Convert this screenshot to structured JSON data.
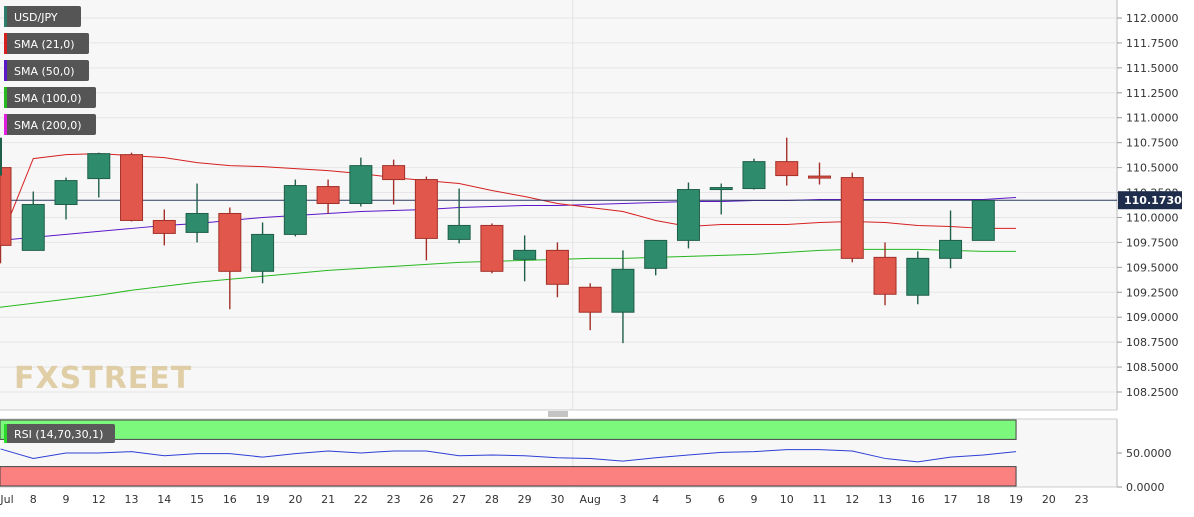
{
  "chart_data": {
    "type": "candlestick",
    "symbol": "USD/JPY",
    "watermark": "FXSTREET",
    "current_price": "110.1730",
    "legend": [
      {
        "label": "USD/JPY",
        "color": "#2e7d6a"
      },
      {
        "label": "SMA (21,0)",
        "color": "#d62020"
      },
      {
        "label": "SMA (50,0)",
        "color": "#5b16c8"
      },
      {
        "label": "SMA (100,0)",
        "color": "#27b71e"
      },
      {
        "label": "SMA (200,0)",
        "color": "#e01ee0"
      }
    ],
    "y_axis": {
      "ylim": [
        108.1,
        112.1
      ],
      "ticks": [
        "112.0000",
        "111.7500",
        "111.5000",
        "111.2500",
        "111.0000",
        "110.7500",
        "110.5000",
        "110.2500",
        "110.0000",
        "109.7500",
        "109.5000",
        "109.2500",
        "109.0000",
        "108.7500",
        "108.5000",
        "108.2500"
      ]
    },
    "x_labels": [
      "Jul",
      "8",
      "9",
      "12",
      "13",
      "14",
      "15",
      "16",
      "19",
      "20",
      "21",
      "22",
      "23",
      "26",
      "27",
      "28",
      "29",
      "30",
      "Aug",
      "3",
      "4",
      "5",
      "6",
      "9",
      "10",
      "11",
      "12",
      "13",
      "16",
      "17",
      "18",
      "19",
      "20",
      "23"
    ],
    "candles": [
      {
        "o": 110.5,
        "h": 110.7,
        "l": 109.54,
        "c": 109.72
      },
      {
        "o": 109.67,
        "h": 110.26,
        "l": 109.67,
        "c": 110.13
      },
      {
        "o": 110.13,
        "h": 110.4,
        "l": 109.98,
        "c": 110.37
      },
      {
        "o": 110.39,
        "h": 110.65,
        "l": 110.2,
        "c": 110.64
      },
      {
        "o": 110.63,
        "h": 110.65,
        "l": 109.96,
        "c": 109.97
      },
      {
        "o": 109.97,
        "h": 110.08,
        "l": 109.72,
        "c": 109.84
      },
      {
        "o": 109.85,
        "h": 110.34,
        "l": 109.75,
        "c": 110.04
      },
      {
        "o": 110.04,
        "h": 110.1,
        "l": 109.08,
        "c": 109.46
      },
      {
        "o": 109.46,
        "h": 109.95,
        "l": 109.34,
        "c": 109.83
      },
      {
        "o": 109.83,
        "h": 110.38,
        "l": 109.81,
        "c": 110.32
      },
      {
        "o": 110.31,
        "h": 110.38,
        "l": 110.04,
        "c": 110.14
      },
      {
        "o": 110.14,
        "h": 110.6,
        "l": 110.11,
        "c": 110.52
      },
      {
        "o": 110.52,
        "h": 110.58,
        "l": 110.13,
        "c": 110.38
      },
      {
        "o": 110.38,
        "h": 110.41,
        "l": 109.57,
        "c": 109.79
      },
      {
        "o": 109.78,
        "h": 110.29,
        "l": 109.74,
        "c": 109.92
      },
      {
        "o": 109.92,
        "h": 109.94,
        "l": 109.44,
        "c": 109.46
      },
      {
        "o": 109.58,
        "h": 109.82,
        "l": 109.36,
        "c": 109.67
      },
      {
        "o": 109.67,
        "h": 109.75,
        "l": 109.2,
        "c": 109.33
      },
      {
        "o": 109.3,
        "h": 109.34,
        "l": 108.87,
        "c": 109.05
      },
      {
        "o": 109.05,
        "h": 109.67,
        "l": 108.74,
        "c": 109.48
      },
      {
        "o": 109.49,
        "h": 109.77,
        "l": 109.42,
        "c": 109.77
      },
      {
        "o": 109.77,
        "h": 110.35,
        "l": 109.69,
        "c": 110.28
      },
      {
        "o": 110.28,
        "h": 110.34,
        "l": 110.03,
        "c": 110.3
      },
      {
        "o": 110.29,
        "h": 110.59,
        "l": 110.28,
        "c": 110.56
      },
      {
        "o": 110.56,
        "h": 110.8,
        "l": 110.32,
        "c": 110.42
      },
      {
        "o": 110.41,
        "h": 110.55,
        "l": 110.33,
        "c": 110.4
      },
      {
        "o": 110.4,
        "h": 110.45,
        "l": 109.55,
        "c": 109.59
      },
      {
        "o": 109.6,
        "h": 109.75,
        "l": 109.12,
        "c": 109.23
      },
      {
        "o": 109.22,
        "h": 109.66,
        "l": 109.13,
        "c": 109.59
      },
      {
        "o": 109.59,
        "h": 110.07,
        "l": 109.49,
        "c": 109.77
      },
      {
        "o": 109.77,
        "h": 110.17,
        "l": 109.77,
        "c": 110.17
      }
    ],
    "sma21": [
      109.76,
      110.59,
      110.63,
      110.64,
      110.62,
      110.6,
      110.55,
      110.52,
      110.51,
      110.49,
      110.47,
      110.44,
      110.4,
      110.37,
      110.34,
      110.27,
      110.21,
      110.14,
      110.1,
      110.06,
      109.97,
      109.91,
      109.93,
      109.93,
      109.93,
      109.95,
      109.96,
      109.95,
      109.92,
      109.91,
      109.89,
      109.89
    ],
    "sma50": [
      109.77,
      109.8,
      109.83,
      109.86,
      109.89,
      109.92,
      109.94,
      109.97,
      110.0,
      110.02,
      110.04,
      110.06,
      110.07,
      110.08,
      110.1,
      110.11,
      110.12,
      110.12,
      110.13,
      110.14,
      110.15,
      110.16,
      110.16,
      110.17,
      110.17,
      110.18,
      110.18,
      110.18,
      110.18,
      110.18,
      110.18,
      110.2
    ],
    "sma100": [
      109.1,
      109.14,
      109.18,
      109.22,
      109.27,
      109.31,
      109.35,
      109.38,
      109.41,
      109.44,
      109.47,
      109.49,
      109.51,
      109.53,
      109.55,
      109.56,
      109.57,
      109.58,
      109.59,
      109.59,
      109.6,
      109.61,
      109.62,
      109.63,
      109.65,
      109.67,
      109.68,
      109.68,
      109.68,
      109.67,
      109.66,
      109.66
    ],
    "rsi": {
      "label": "RSI (14,70,30,1)",
      "ylim": [
        0,
        100
      ],
      "ticks": [
        "50.0000",
        "0.0000"
      ],
      "overbought": 70,
      "oversold": 30,
      "values": [
        56,
        42,
        50,
        50,
        52,
        46,
        49,
        49,
        44,
        49,
        53,
        50,
        53,
        53,
        46,
        47,
        46,
        43,
        42,
        38,
        43,
        47,
        51,
        52,
        55,
        55,
        53,
        42,
        37,
        44,
        47,
        52
      ]
    }
  }
}
